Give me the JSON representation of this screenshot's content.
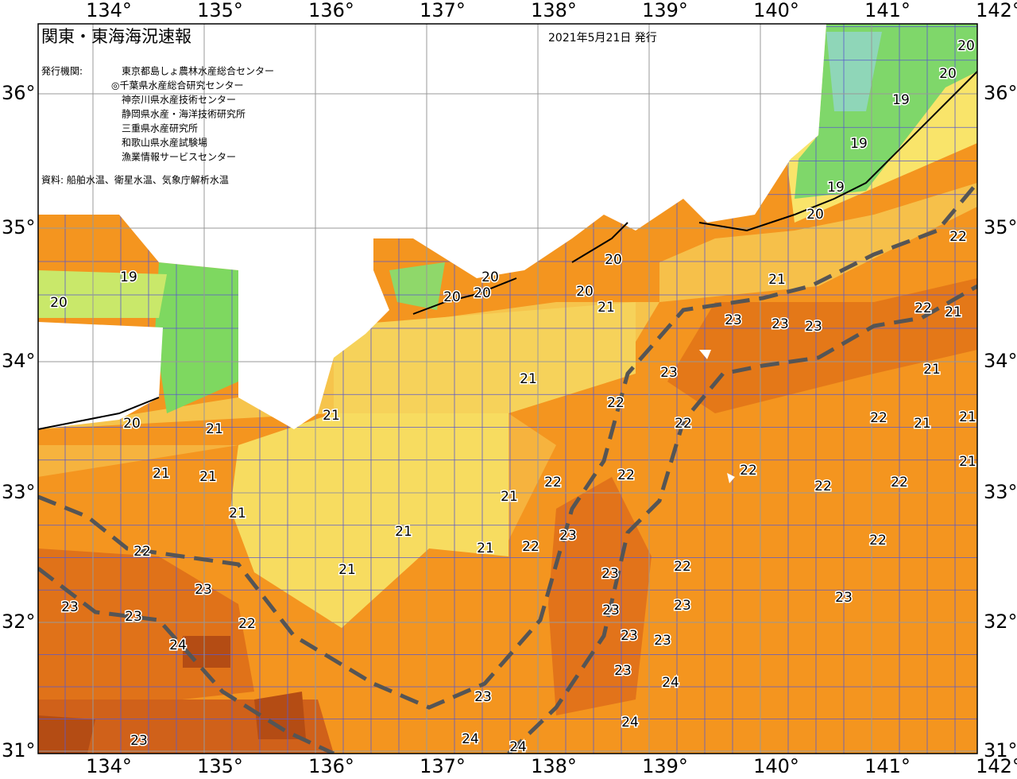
{
  "header": {
    "title": "関東・東海海況速報",
    "date": "2021年5月21日 発行",
    "issuer_label": "発行機関:",
    "issuers": [
      "東京都島しょ農林水産総合センター",
      "◎千葉県水産総合研究センター",
      "神奈川県水産技術センター",
      "静岡県水産・海洋技術研究所",
      "三重県水産研究所",
      "和歌山県水産試験場",
      "漁業情報サービスセンター"
    ],
    "source": "資料: 船舶水温、衛星水温、気象庁解析水温"
  },
  "map": {
    "lon_labels": [
      "134°",
      "135°",
      "136°",
      "137°",
      "138°",
      "139°",
      "140°",
      "141°",
      "142°"
    ],
    "lat_labels": [
      "36°",
      "35°",
      "34°",
      "33°",
      "32°",
      "31°"
    ],
    "contour_labels": [
      "20",
      "20",
      "19",
      "19",
      "19",
      "20",
      "20",
      "21",
      "21",
      "22",
      "21",
      "23",
      "23",
      "23",
      "23",
      "21",
      "22",
      "22",
      "22",
      "21",
      "21",
      "22",
      "22",
      "22",
      "22",
      "21",
      "21",
      "22",
      "21",
      "21",
      "21",
      "20",
      "20",
      "20",
      "20",
      "20",
      "21",
      "21",
      "21",
      "21",
      "22",
      "22",
      "23",
      "23",
      "24",
      "22",
      "22",
      "23",
      "23",
      "23",
      "23",
      "23",
      "23",
      "22",
      "22",
      "23",
      "23",
      "23",
      "24",
      "24",
      "24",
      "24",
      "23",
      "23",
      "19",
      "20",
      "21",
      "21"
    ]
  }
}
